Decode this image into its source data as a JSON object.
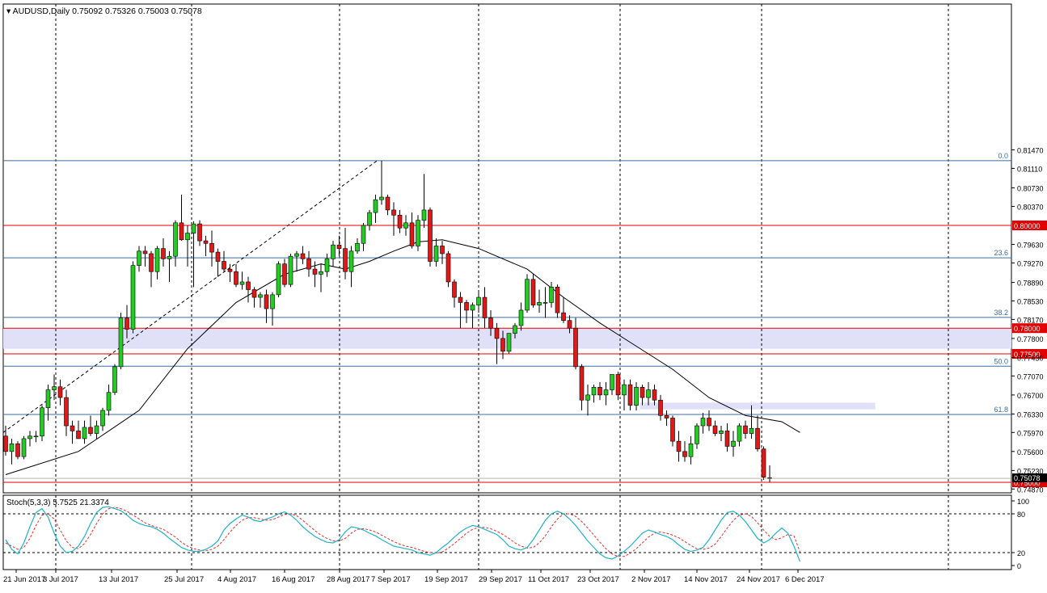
{
  "header": {
    "symbol_label": "AUDUSD,Daily",
    "ohlc_values": "0.75092 0.75326 0.75003 0.75078"
  },
  "indicator": {
    "label": "Stoch(5,3,3) 5.7525 21.3374",
    "scale_labels": [
      "100",
      "80",
      "20",
      "0"
    ],
    "level_values": [
      100,
      80,
      20,
      0
    ]
  },
  "chart_data": {
    "type": "candlestick",
    "symbol": "AUDUSD",
    "timeframe": "Daily",
    "last_ohlc": {
      "open": 0.75092,
      "high": 0.75326,
      "low": 0.75003,
      "close": 0.75078
    },
    "price_axis_ticks": [
      "0.81470",
      "0.81110",
      "0.80730",
      "0.80370",
      "0.79630",
      "0.79270",
      "0.78890",
      "0.78530",
      "0.78170",
      "0.77800",
      "0.77430",
      "0.77070",
      "0.76700",
      "0.76330",
      "0.75970",
      "0.75600",
      "0.75230",
      "0.74870"
    ],
    "date_axis_ticks": [
      "21 Jun 2017",
      "3 Jul 2017",
      "13 Jul 2017",
      "25 Jul 2017",
      "4 Aug 2017",
      "16 Aug 2017",
      "28 Aug 2017",
      "7 Sep 2017",
      "19 Sep 2017",
      "29 Sep 2017",
      "11 Oct 2017",
      "23 Oct 2017",
      "2 Nov 2017",
      "14 Nov 2017",
      "24 Nov 2017",
      "6 Dec 2017"
    ],
    "ylim": [
      0.7484,
      0.8149
    ],
    "horizontal_levels": [
      {
        "label": "0.80000",
        "price": 0.8,
        "color": "#e00000"
      },
      {
        "label": "0.78000",
        "price": 0.78,
        "color": "#e00000"
      },
      {
        "label": "0.77500",
        "price": 0.775,
        "color": "#e00000"
      },
      {
        "label": "0.75000",
        "price": 0.75,
        "color": "#e00000"
      }
    ],
    "fibonacci_levels": [
      {
        "label": "0.0",
        "price": 0.8126
      },
      {
        "label": "23.6",
        "price": 0.7937
      },
      {
        "label": "38.2",
        "price": 0.7821
      },
      {
        "label": "50.0",
        "price": 0.7726
      },
      {
        "label": "61.8",
        "price": 0.7632
      }
    ],
    "current_price_label": "0.75078",
    "support_zones": [
      {
        "from": 0.78,
        "to": 0.776,
        "start_day": 0,
        "end_day": 999
      },
      {
        "from": 0.7655,
        "to": 0.7642,
        "start_day": 105,
        "end_day": 143
      }
    ],
    "candles": [
      [
        0.759,
        0.761,
        0.7552,
        0.756
      ],
      [
        0.756,
        0.7585,
        0.7535,
        0.7575
      ],
      [
        0.7575,
        0.758,
        0.7545,
        0.755
      ],
      [
        0.755,
        0.759,
        0.7545,
        0.7585
      ],
      [
        0.7585,
        0.76,
        0.757,
        0.759
      ],
      [
        0.759,
        0.76,
        0.7578,
        0.759
      ],
      [
        0.759,
        0.765,
        0.758,
        0.7645
      ],
      [
        0.7645,
        0.769,
        0.762,
        0.768
      ],
      [
        0.768,
        0.771,
        0.766,
        0.7686
      ],
      [
        0.7686,
        0.77,
        0.765,
        0.7665
      ],
      [
        0.7665,
        0.768,
        0.759,
        0.761
      ],
      [
        0.761,
        0.762,
        0.7575,
        0.76
      ],
      [
        0.76,
        0.762,
        0.7585,
        0.7585
      ],
      [
        0.7585,
        0.762,
        0.7575,
        0.7607
      ],
      [
        0.7607,
        0.763,
        0.759,
        0.7595
      ],
      [
        0.7595,
        0.762,
        0.7585,
        0.761
      ],
      [
        0.761,
        0.7645,
        0.76,
        0.764
      ],
      [
        0.764,
        0.769,
        0.763,
        0.7675
      ],
      [
        0.7675,
        0.773,
        0.767,
        0.7725
      ],
      [
        0.7725,
        0.783,
        0.772,
        0.782
      ],
      [
        0.782,
        0.7845,
        0.778,
        0.7798
      ],
      [
        0.7798,
        0.793,
        0.779,
        0.7922
      ],
      [
        0.7922,
        0.796,
        0.791,
        0.795
      ],
      [
        0.795,
        0.796,
        0.792,
        0.7945
      ],
      [
        0.7945,
        0.795,
        0.788,
        0.791
      ],
      [
        0.791,
        0.796,
        0.7895,
        0.7955
      ],
      [
        0.7955,
        0.7975,
        0.792,
        0.7935
      ],
      [
        0.7935,
        0.795,
        0.789,
        0.794
      ],
      [
        0.794,
        0.801,
        0.792,
        0.8005
      ],
      [
        0.8005,
        0.806,
        0.797,
        0.7972
      ],
      [
        0.7972,
        0.8,
        0.792,
        0.7985
      ],
      [
        0.7985,
        0.8008,
        0.788,
        0.8003
      ],
      [
        0.8003,
        0.801,
        0.796,
        0.797
      ],
      [
        0.797,
        0.798,
        0.794,
        0.7965
      ],
      [
        0.7965,
        0.799,
        0.792,
        0.7948
      ],
      [
        0.7948,
        0.7955,
        0.79,
        0.793
      ],
      [
        0.793,
        0.795,
        0.791,
        0.7915
      ],
      [
        0.7915,
        0.7925,
        0.789,
        0.791
      ],
      [
        0.791,
        0.7925,
        0.788,
        0.7885
      ],
      [
        0.7885,
        0.791,
        0.7875,
        0.789
      ],
      [
        0.789,
        0.79,
        0.785,
        0.7875
      ],
      [
        0.7875,
        0.788,
        0.784,
        0.786
      ],
      [
        0.786,
        0.787,
        0.784,
        0.7865
      ],
      [
        0.7865,
        0.7875,
        0.781,
        0.7838
      ],
      [
        0.7838,
        0.787,
        0.7805,
        0.7865
      ],
      [
        0.7865,
        0.793,
        0.786,
        0.7925
      ],
      [
        0.7925,
        0.7935,
        0.788,
        0.7885
      ],
      [
        0.7885,
        0.7945,
        0.788,
        0.794
      ],
      [
        0.794,
        0.795,
        0.791,
        0.7945
      ],
      [
        0.7945,
        0.796,
        0.7925,
        0.7935
      ],
      [
        0.7935,
        0.795,
        0.79,
        0.7915
      ],
      [
        0.7915,
        0.793,
        0.788,
        0.7905
      ],
      [
        0.7905,
        0.7925,
        0.787,
        0.791
      ],
      [
        0.791,
        0.7945,
        0.79,
        0.7935
      ],
      [
        0.7935,
        0.797,
        0.792,
        0.7962
      ],
      [
        0.7962,
        0.798,
        0.794,
        0.7955
      ],
      [
        0.7955,
        0.7995,
        0.7895,
        0.791
      ],
      [
        0.791,
        0.796,
        0.788,
        0.795
      ],
      [
        0.795,
        0.7975,
        0.7945,
        0.7965
      ],
      [
        0.7965,
        0.8005,
        0.795,
        0.8
      ],
      [
        0.8,
        0.803,
        0.799,
        0.8025
      ],
      [
        0.8025,
        0.806,
        0.8005,
        0.805
      ],
      [
        0.805,
        0.8126,
        0.804,
        0.8055
      ],
      [
        0.8055,
        0.806,
        0.802,
        0.803
      ],
      [
        0.803,
        0.8045,
        0.798,
        0.802
      ],
      [
        0.802,
        0.803,
        0.7985,
        0.7995
      ],
      [
        0.7995,
        0.802,
        0.798,
        0.8005
      ],
      [
        0.8005,
        0.8025,
        0.7955,
        0.796
      ],
      [
        0.796,
        0.802,
        0.795,
        0.801
      ],
      [
        0.801,
        0.81,
        0.7995,
        0.803
      ],
      [
        0.803,
        0.8035,
        0.792,
        0.793
      ],
      [
        0.793,
        0.7975,
        0.792,
        0.796
      ],
      [
        0.796,
        0.797,
        0.7925,
        0.7945
      ],
      [
        0.7945,
        0.795,
        0.788,
        0.789
      ],
      [
        0.789,
        0.7895,
        0.784,
        0.786
      ],
      [
        0.786,
        0.787,
        0.78,
        0.785
      ],
      [
        0.785,
        0.7855,
        0.781,
        0.7835
      ],
      [
        0.7835,
        0.785,
        0.78,
        0.7845
      ],
      [
        0.7845,
        0.787,
        0.783,
        0.786
      ],
      [
        0.786,
        0.788,
        0.78,
        0.782
      ],
      [
        0.782,
        0.7835,
        0.7785,
        0.78
      ],
      [
        0.78,
        0.781,
        0.773,
        0.778
      ],
      [
        0.778,
        0.7795,
        0.774,
        0.7755
      ],
      [
        0.7755,
        0.779,
        0.775,
        0.779
      ],
      [
        0.779,
        0.781,
        0.778,
        0.7805
      ],
      [
        0.7805,
        0.785,
        0.7795,
        0.7835
      ],
      [
        0.7835,
        0.7905,
        0.783,
        0.7895
      ],
      [
        0.7895,
        0.7905,
        0.784,
        0.7845
      ],
      [
        0.7845,
        0.7875,
        0.783,
        0.785
      ],
      [
        0.785,
        0.788,
        0.782,
        0.785
      ],
      [
        0.785,
        0.789,
        0.784,
        0.788
      ],
      [
        0.788,
        0.7885,
        0.782,
        0.783
      ],
      [
        0.783,
        0.786,
        0.781,
        0.7815
      ],
      [
        0.7815,
        0.7825,
        0.779,
        0.78
      ],
      [
        0.78,
        0.782,
        0.772,
        0.7725
      ],
      [
        0.7725,
        0.773,
        0.764,
        0.766
      ],
      [
        0.766,
        0.769,
        0.763,
        0.767
      ],
      [
        0.767,
        0.769,
        0.7655,
        0.7685
      ],
      [
        0.7685,
        0.7695,
        0.766,
        0.767
      ],
      [
        0.767,
        0.7695,
        0.765,
        0.768
      ],
      [
        0.768,
        0.771,
        0.767,
        0.771
      ],
      [
        0.771,
        0.7715,
        0.766,
        0.767
      ],
      [
        0.767,
        0.77,
        0.764,
        0.769
      ],
      [
        0.769,
        0.77,
        0.764,
        0.765
      ],
      [
        0.765,
        0.7695,
        0.764,
        0.7685
      ],
      [
        0.7685,
        0.769,
        0.765,
        0.7665
      ],
      [
        0.7665,
        0.7695,
        0.765,
        0.768
      ],
      [
        0.768,
        0.769,
        0.765,
        0.766
      ],
      [
        0.766,
        0.767,
        0.762,
        0.763
      ],
      [
        0.763,
        0.764,
        0.761,
        0.7625
      ],
      [
        0.7625,
        0.763,
        0.757,
        0.758
      ],
      [
        0.758,
        0.76,
        0.754,
        0.756
      ],
      [
        0.756,
        0.758,
        0.754,
        0.755
      ],
      [
        0.755,
        0.759,
        0.7535,
        0.7575
      ],
      [
        0.7575,
        0.7615,
        0.7565,
        0.761
      ],
      [
        0.761,
        0.7635,
        0.7595,
        0.7625
      ],
      [
        0.7625,
        0.764,
        0.76,
        0.761
      ],
      [
        0.761,
        0.762,
        0.759,
        0.7595
      ],
      [
        0.7595,
        0.761,
        0.758,
        0.76
      ],
      [
        0.76,
        0.7615,
        0.756,
        0.757
      ],
      [
        0.757,
        0.76,
        0.755,
        0.758
      ],
      [
        0.758,
        0.7615,
        0.757,
        0.761
      ],
      [
        0.761,
        0.762,
        0.7585,
        0.7595
      ],
      [
        0.7595,
        0.765,
        0.7585,
        0.7605
      ],
      [
        0.7605,
        0.763,
        0.756,
        0.7565
      ],
      [
        0.7565,
        0.757,
        0.7505,
        0.751
      ],
      [
        0.7509,
        0.7533,
        0.75,
        0.7508
      ]
    ],
    "moving_average": [
      [
        0,
        0.7515
      ],
      [
        12,
        0.756
      ],
      [
        22,
        0.764
      ],
      [
        30,
        0.776
      ],
      [
        38,
        0.785
      ],
      [
        46,
        0.7905
      ],
      [
        52,
        0.7925
      ],
      [
        56,
        0.7915
      ],
      [
        60,
        0.793
      ],
      [
        64,
        0.795
      ],
      [
        68,
        0.7968
      ],
      [
        72,
        0.7972
      ],
      [
        78,
        0.7955
      ],
      [
        86,
        0.7915
      ],
      [
        92,
        0.786
      ],
      [
        98,
        0.781
      ],
      [
        104,
        0.7765
      ],
      [
        110,
        0.772
      ],
      [
        116,
        0.7665
      ],
      [
        122,
        0.763
      ],
      [
        128,
        0.7618
      ],
      [
        131,
        0.7597
      ]
    ],
    "stochastic": {
      "k": [
        40,
        25,
        18,
        35,
        60,
        82,
        88,
        75,
        50,
        30,
        20,
        22,
        30,
        45,
        65,
        82,
        90,
        91,
        88,
        85,
        78,
        70,
        65,
        62,
        60,
        56,
        50,
        42,
        35,
        28,
        24,
        22,
        22,
        25,
        30,
        38,
        55,
        65,
        72,
        78,
        75,
        70,
        68,
        72,
        75,
        80,
        83,
        78,
        70,
        60,
        52,
        45,
        40,
        36,
        35,
        40,
        52,
        60,
        58,
        55,
        50,
        46,
        40,
        35,
        30,
        28,
        26,
        24,
        20,
        18,
        16,
        20,
        28,
        35,
        44,
        52,
        58,
        62,
        60,
        56,
        52,
        48,
        40,
        30,
        26,
        24,
        28,
        40,
        55,
        70,
        80,
        84,
        80,
        72,
        62,
        50,
        38,
        28,
        18,
        12,
        10,
        15,
        22,
        30,
        40,
        50,
        55,
        52,
        48,
        45,
        40,
        32,
        25,
        22,
        24,
        28,
        40,
        55,
        70,
        82,
        84,
        78,
        68,
        55,
        42,
        35,
        40,
        50,
        58,
        50,
        30,
        6
      ],
      "d": [
        35,
        30,
        25,
        28,
        42,
        62,
        78,
        80,
        72,
        55,
        38,
        28,
        26,
        34,
        48,
        65,
        80,
        88,
        90,
        88,
        84,
        78,
        72,
        66,
        62,
        59,
        56,
        50,
        44,
        36,
        30,
        26,
        24,
        23,
        25,
        30,
        40,
        52,
        62,
        70,
        74,
        74,
        72,
        70,
        71,
        75,
        79,
        80,
        77,
        70,
        62,
        54,
        47,
        42,
        38,
        38,
        42,
        50,
        56,
        57,
        55,
        52,
        47,
        42,
        37,
        33,
        30,
        28,
        25,
        22,
        20,
        19,
        21,
        27,
        34,
        42,
        50,
        56,
        59,
        59,
        57,
        53,
        48,
        42,
        35,
        30,
        27,
        28,
        35,
        46,
        60,
        72,
        80,
        80,
        76,
        68,
        58,
        47,
        36,
        26,
        18,
        14,
        14,
        19,
        26,
        35,
        44,
        50,
        52,
        50,
        47,
        43,
        37,
        31,
        26,
        25,
        27,
        33,
        45,
        58,
        70,
        78,
        80,
        76,
        66,
        55,
        45,
        40,
        43,
        48,
        46,
        21
      ]
    }
  },
  "colors": {
    "bull_candle": "#22cc22",
    "bear_candle": "#e01818",
    "candle_outline": "#000000",
    "level_line": "#e00000",
    "fib_line": "#3c6e9e",
    "zone_fill": "#e0e0f8",
    "stoch_k": "#20b2c8",
    "stoch_d": "#e03030",
    "ma_line": "#000000"
  }
}
